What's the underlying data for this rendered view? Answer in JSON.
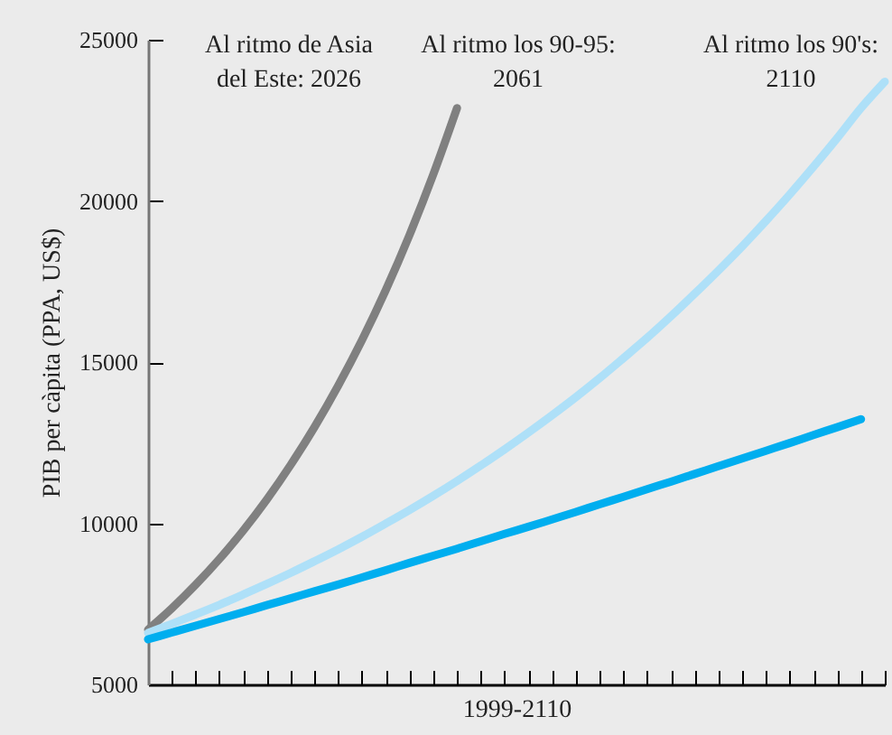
{
  "chart_data": {
    "type": "line",
    "ylabel": "PIB per càpita (PPA, US$)",
    "xlabel": "1999-2110",
    "categories": [
      null,
      null,
      null,
      null,
      null,
      null,
      null,
      null,
      null,
      null,
      null,
      null,
      null,
      null,
      null,
      null,
      null,
      null,
      null,
      null,
      null,
      null,
      null,
      null,
      null,
      null,
      null,
      null,
      null,
      null,
      null,
      null
    ],
    "series": [
      {
        "color": "#808080",
        "values": [
          6700,
          7360,
          8090,
          8890,
          9770,
          10740,
          11810,
          12980,
          14270,
          15680,
          17230,
          18940,
          20820,
          22880,
          null,
          null,
          null,
          null,
          null,
          null,
          null,
          null,
          null,
          null,
          null,
          null,
          null,
          null,
          null,
          null,
          null,
          null
        ]
      },
      {
        "color": "#aee0f8",
        "values": [
          6600,
          6880,
          7170,
          7470,
          7790,
          8120,
          8460,
          8820,
          9190,
          9580,
          9990,
          10410,
          10850,
          11310,
          11790,
          12290,
          12810,
          13350,
          13910,
          14500,
          15120,
          15750,
          16420,
          17120,
          17840,
          18590,
          19380,
          20200,
          21060,
          21950,
          22880,
          23700
        ]
      },
      {
        "color": "#00aeef",
        "values": [
          6400,
          6610,
          6820,
          7030,
          7240,
          7460,
          7670,
          7890,
          8100,
          8320,
          8540,
          8770,
          8990,
          9210,
          9440,
          9670,
          9890,
          10120,
          10350,
          10590,
          10820,
          11060,
          11290,
          11530,
          11770,
          12010,
          12250,
          12490,
          12740,
          12980,
          13230,
          null
        ]
      }
    ],
    "ylim": [
      5000,
      25000
    ],
    "yticks": [
      5000,
      10000,
      15000,
      20000,
      25000
    ],
    "tick_labels": "y",
    "line_style": "solid",
    "annotations": [
      "Al ritmo de Asia\ndel Este: 2026",
      "Al ritmo los 90-95:\n2061",
      "Al ritmo los 90's:\n2110"
    ]
  }
}
